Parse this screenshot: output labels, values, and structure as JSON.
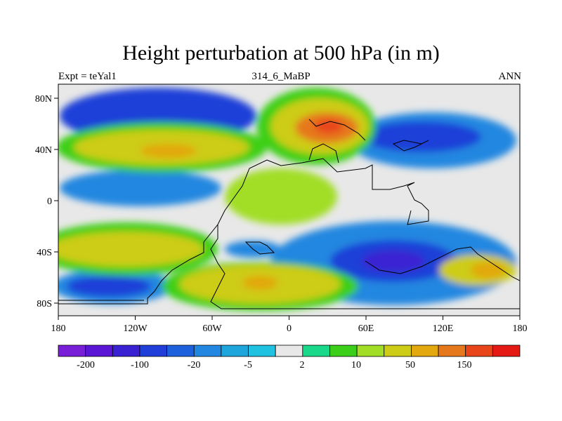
{
  "map": {
    "title": "Height perturbation at 500 hPa (in m)",
    "subtitle_left": "Expt = teYal1",
    "subtitle_center": "314_6_MaBP",
    "subtitle_right": "ANN",
    "lon_ticks": [
      "180",
      "120W",
      "60W",
      "0",
      "60E",
      "120E",
      "180"
    ],
    "lat_ticks": [
      "80N",
      "40N",
      "0",
      "40S",
      "80S"
    ],
    "colorbar": {
      "colors": [
        "#7a1fd8",
        "#5a16d4",
        "#3a22d2",
        "#1f3fd8",
        "#1d62dc",
        "#2287e0",
        "#1ea6dc",
        "#20c2e2",
        "#e8e8e8",
        "#19d88a",
        "#3ccf19",
        "#a2de26",
        "#cdcc16",
        "#e2a80e",
        "#e6781c",
        "#e8451a",
        "#e51a14"
      ],
      "labels": [
        "-200",
        "-100",
        "-20",
        "-5",
        "2",
        "10",
        "50",
        "150"
      ]
    }
  }
}
